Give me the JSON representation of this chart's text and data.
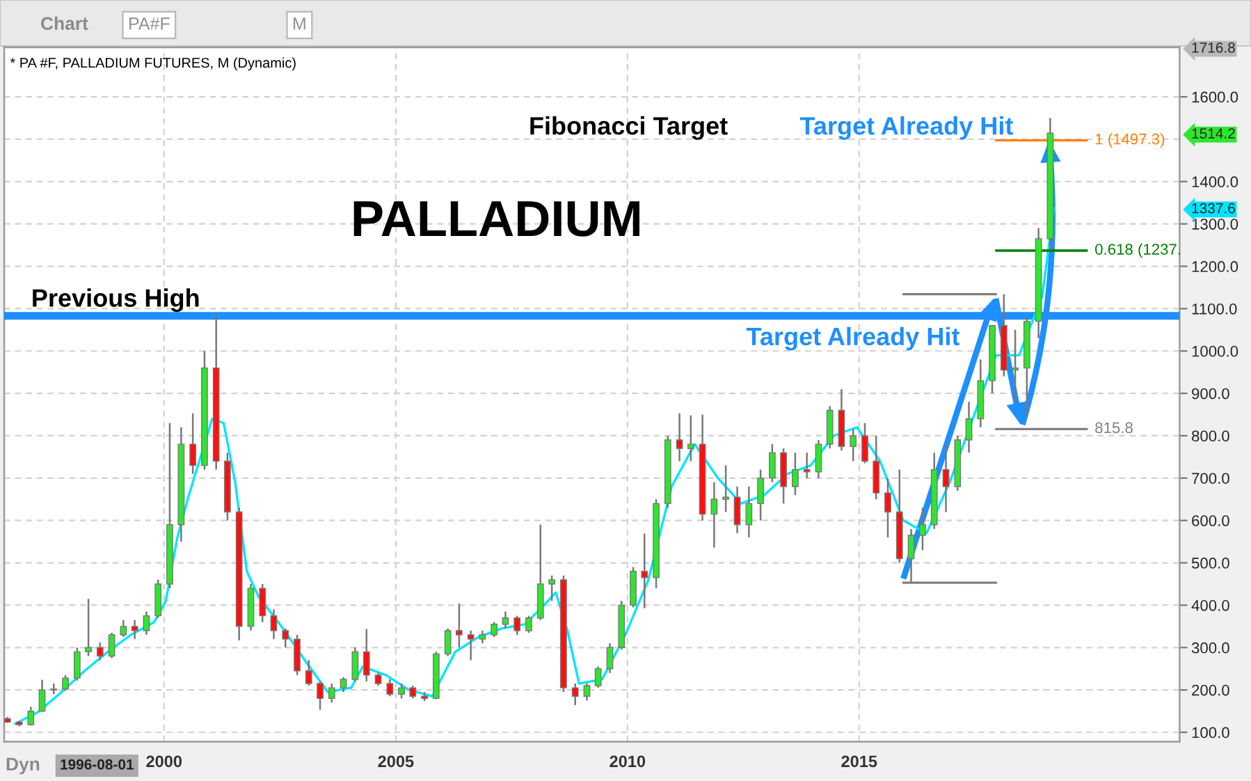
{
  "chart_data": {
    "type": "candlestick",
    "title": "* PA #F, PALLADIUM FUTURES, M (Dynamic)",
    "subtitle": "PALLADIUM",
    "x": [
      "1996-08-15",
      "1996-11-15",
      "1997-02-15",
      "1997-05-15",
      "1997-08-15",
      "1997-11-15",
      "1998-02-15",
      "1998-05-15",
      "1998-08-15",
      "1998-11-15",
      "1999-02-15",
      "1999-05-15",
      "1999-08-15",
      "1999-11-15",
      "2000-02-15",
      "2000-05-15",
      "2000-08-15",
      "2000-11-15",
      "2001-02-15",
      "2001-05-15",
      "2001-08-15",
      "2001-11-15",
      "2002-02-15",
      "2002-05-15",
      "2002-08-15",
      "2002-11-15",
      "2003-02-15",
      "2003-05-15",
      "2003-08-15",
      "2003-11-15",
      "2004-02-15",
      "2004-05-15",
      "2004-08-15",
      "2004-11-15",
      "2005-02-15",
      "2005-05-15",
      "2005-08-15",
      "2005-11-15",
      "2006-02-15",
      "2006-05-15",
      "2006-08-15",
      "2006-11-15",
      "2007-02-15",
      "2007-05-15",
      "2007-08-15",
      "2007-11-15",
      "2008-02-15",
      "2008-05-15",
      "2008-08-15",
      "2008-11-15",
      "2009-02-15",
      "2009-05-15",
      "2009-08-15",
      "2009-11-15",
      "2010-02-15",
      "2010-05-15",
      "2010-08-15",
      "2010-11-15",
      "2011-02-15",
      "2011-05-15",
      "2011-08-15",
      "2011-11-15",
      "2012-02-15",
      "2012-05-15",
      "2012-08-15",
      "2012-11-15",
      "2013-02-15",
      "2013-05-15",
      "2013-08-15",
      "2013-11-15",
      "2014-02-15",
      "2014-05-15",
      "2014-08-15",
      "2014-11-15",
      "2015-02-15",
      "2015-05-15",
      "2015-08-15",
      "2015-11-15",
      "2016-02-15",
      "2016-05-15",
      "2016-08-15",
      "2016-11-15",
      "2017-02-15",
      "2017-05-15",
      "2017-08-15",
      "2017-11-15",
      "2018-02-15",
      "2018-05-15",
      "2018-08-15",
      "2018-11-15",
      "2019-02-15"
    ],
    "ohlc": [
      [
        132,
        136,
        122,
        124
      ],
      [
        124,
        126,
        114,
        118
      ],
      [
        118,
        160,
        116,
        150
      ],
      [
        150,
        224,
        148,
        200
      ],
      [
        200,
        215,
        190,
        202
      ],
      [
        202,
        235,
        198,
        228
      ],
      [
        228,
        300,
        222,
        290
      ],
      [
        290,
        415,
        280,
        300
      ],
      [
        300,
        312,
        270,
        280
      ],
      [
        280,
        335,
        275,
        330
      ],
      [
        330,
        365,
        325,
        350
      ],
      [
        350,
        365,
        320,
        340
      ],
      [
        340,
        385,
        330,
        375
      ],
      [
        375,
        460,
        370,
        450
      ],
      [
        450,
        830,
        440,
        590
      ],
      [
        590,
        820,
        550,
        780
      ],
      [
        780,
        853,
        710,
        730
      ],
      [
        730,
        1000,
        720,
        960
      ],
      [
        960,
        1085,
        720,
        740
      ],
      [
        740,
        760,
        600,
        620
      ],
      [
        620,
        630,
        317,
        350
      ],
      [
        350,
        450,
        340,
        440
      ],
      [
        440,
        450,
        360,
        375
      ],
      [
        375,
        390,
        320,
        340
      ],
      [
        340,
        345,
        300,
        320
      ],
      [
        320,
        330,
        235,
        245
      ],
      [
        245,
        270,
        210,
        215
      ],
      [
        215,
        220,
        153,
        180
      ],
      [
        180,
        215,
        170,
        205
      ],
      [
        205,
        230,
        195,
        225
      ],
      [
        225,
        300,
        220,
        290
      ],
      [
        290,
        344,
        220,
        235
      ],
      [
        235,
        240,
        210,
        215
      ],
      [
        215,
        225,
        185,
        190
      ],
      [
        190,
        215,
        180,
        205
      ],
      [
        205,
        210,
        180,
        185
      ],
      [
        185,
        195,
        174,
        180
      ],
      [
        180,
        290,
        178,
        285
      ],
      [
        285,
        345,
        280,
        340
      ],
      [
        340,
        404,
        300,
        330
      ],
      [
        330,
        340,
        270,
        320
      ],
      [
        320,
        340,
        310,
        330
      ],
      [
        330,
        360,
        325,
        355
      ],
      [
        355,
        385,
        345,
        370
      ],
      [
        370,
        375,
        330,
        340
      ],
      [
        340,
        375,
        335,
        370
      ],
      [
        370,
        590,
        365,
        450
      ],
      [
        450,
        470,
        410,
        460
      ],
      [
        460,
        470,
        195,
        205
      ],
      [
        205,
        215,
        164,
        185
      ],
      [
        185,
        215,
        175,
        210
      ],
      [
        210,
        255,
        205,
        250
      ],
      [
        250,
        310,
        240,
        300
      ],
      [
        300,
        410,
        295,
        400
      ],
      [
        400,
        490,
        395,
        480
      ],
      [
        480,
        569,
        393,
        465
      ],
      [
        465,
        650,
        440,
        640
      ],
      [
        640,
        800,
        630,
        790
      ],
      [
        790,
        853,
        740,
        770
      ],
      [
        770,
        848,
        740,
        780
      ],
      [
        780,
        850,
        600,
        615
      ],
      [
        615,
        690,
        536,
        650
      ],
      [
        650,
        730,
        620,
        655
      ],
      [
        655,
        680,
        570,
        590
      ],
      [
        590,
        680,
        560,
        640
      ],
      [
        640,
        720,
        600,
        700
      ],
      [
        700,
        780,
        690,
        760
      ],
      [
        760,
        770,
        640,
        680
      ],
      [
        680,
        760,
        660,
        720
      ],
      [
        720,
        760,
        700,
        715
      ],
      [
        715,
        790,
        700,
        780
      ],
      [
        780,
        870,
        770,
        860
      ],
      [
        860,
        910,
        765,
        775
      ],
      [
        775,
        815,
        740,
        800
      ],
      [
        800,
        830,
        735,
        740
      ],
      [
        740,
        800,
        650,
        665
      ],
      [
        665,
        700,
        560,
        620
      ],
      [
        620,
        720,
        500,
        510
      ],
      [
        510,
        580,
        453,
        565
      ],
      [
        565,
        630,
        530,
        590
      ],
      [
        590,
        760,
        580,
        720
      ],
      [
        720,
        780,
        620,
        680
      ],
      [
        680,
        800,
        670,
        790
      ],
      [
        790,
        880,
        760,
        840
      ],
      [
        840,
        980,
        820,
        930
      ],
      [
        930,
        1060,
        900,
        1060
      ],
      [
        1060,
        1134,
        940,
        955
      ],
      [
        955,
        1050,
        880,
        960
      ],
      [
        960,
        1080,
        845,
        1070
      ],
      [
        1070,
        1290,
        1030,
        1265
      ],
      [
        1265,
        1550,
        1240,
        1514.2
      ]
    ],
    "colors": [
      "#ff1010",
      "#ff1010",
      "#2ee62e",
      "#2ee62e",
      "#2ee62e",
      "#2ee62e",
      "#2ee62e",
      "#2ee62e",
      "#ff1010",
      "#2ee62e",
      "#2ee62e",
      "#ff1010",
      "#2ee62e",
      "#2ee62e",
      "#2ee62e",
      "#2ee62e",
      "#ff1010",
      "#2ee62e",
      "#ff1010",
      "#ff1010",
      "#ff1010",
      "#2ee62e",
      "#ff1010",
      "#ff1010",
      "#ff1010",
      "#ff1010",
      "#ff1010",
      "#ff1010",
      "#2ee62e",
      "#2ee62e",
      "#2ee62e",
      "#ff1010",
      "#ff1010",
      "#ff1010",
      "#2ee62e",
      "#ff1010",
      "#ff1010",
      "#2ee62e",
      "#2ee62e",
      "#ff1010",
      "#ff1010",
      "#2ee62e",
      "#2ee62e",
      "#2ee62e",
      "#ff1010",
      "#2ee62e",
      "#2ee62e",
      "#2ee62e",
      "#ff1010",
      "#ff1010",
      "#2ee62e",
      "#2ee62e",
      "#2ee62e",
      "#2ee62e",
      "#2ee62e",
      "#ff1010",
      "#2ee62e",
      "#2ee62e",
      "#ff1010",
      "#2ee62e",
      "#ff1010",
      "#2ee62e",
      "#2ee62e",
      "#ff1010",
      "#2ee62e",
      "#2ee62e",
      "#2ee62e",
      "#ff1010",
      "#2ee62e",
      "#ff1010",
      "#2ee62e",
      "#2ee62e",
      "#ff1010",
      "#2ee62e",
      "#ff1010",
      "#ff1010",
      "#ff1010",
      "#ff1010",
      "#2ee62e",
      "#2ee62e",
      "#2ee62e",
      "#ff1010",
      "#2ee62e",
      "#2ee62e",
      "#2ee62e",
      "#2ee62e",
      "#ff1010",
      "#2ee62e",
      "#2ee62e",
      "#2ee62e",
      "#2ee62e"
    ],
    "series": [
      {
        "type": "line",
        "color": "#00e5ff",
        "x": [
          "1996-10-15",
          "1997-04-15",
          "1997-10-15",
          "1998-04-15",
          "1998-10-15",
          "1999-04-15",
          "1999-10-15",
          "2000-01-15",
          "2000-04-15",
          "2000-07-15",
          "2000-10-15",
          "2001-01-15",
          "2001-04-15",
          "2001-07-15",
          "2001-10-15",
          "2002-01-15",
          "2002-07-15",
          "2003-01-15",
          "2003-07-15",
          "2004-01-15",
          "2004-04-15",
          "2004-10-15",
          "2005-04-15",
          "2005-10-15",
          "2006-04-15",
          "2006-10-15",
          "2007-04-15",
          "2007-10-15",
          "2008-03-15",
          "2008-06-15",
          "2008-09-15",
          "2008-12-15",
          "2009-06-15",
          "2009-12-15",
          "2010-06-15",
          "2010-12-15",
          "2011-06-15",
          "2011-12-15",
          "2012-06-15",
          "2012-12-15",
          "2013-06-15",
          "2013-12-15",
          "2014-06-15",
          "2014-12-15",
          "2015-06-15",
          "2015-12-15",
          "2016-06-15",
          "2016-12-15",
          "2017-06-15",
          "2017-12-15",
          "2018-06-15",
          "2018-12-15",
          "2019-03-15"
        ],
        "values": [
          120,
          148,
          195,
          245,
          290,
          330,
          360,
          410,
          560,
          660,
          750,
          840,
          830,
          690,
          480,
          420,
          350,
          270,
          195,
          205,
          255,
          235,
          200,
          185,
          290,
          325,
          345,
          355,
          400,
          430,
          340,
          215,
          225,
          330,
          460,
          680,
          780,
          700,
          640,
          660,
          710,
          730,
          800,
          820,
          740,
          600,
          570,
          690,
          840,
          990,
          990,
          1130,
          1337.6
        ]
      },
      {
        "type": "line",
        "color": "#808080",
        "x": [
          "2015-12-15",
          "2017-12-15"
        ],
        "values": [
          453,
          453
        ]
      },
      {
        "type": "line",
        "color": "#808080",
        "x": [
          "2015-12-15",
          "2017-12-15"
        ],
        "values": [
          1134,
          1134
        ]
      },
      {
        "type": "line",
        "name": "815.8",
        "color": "#808080",
        "x": [
          "2017-12-15",
          "2019-12-01"
        ],
        "values": [
          815.8,
          815.8
        ]
      },
      {
        "type": "line",
        "name": "0.618 (1237.",
        "color": "#008000",
        "x": [
          "2017-12-15",
          "2019-12-01"
        ],
        "values": [
          1237,
          1237
        ]
      },
      {
        "type": "line",
        "name": "1 (1497.3)",
        "color": "#ff8000",
        "x": [
          "2017-12-15",
          "2019-12-01"
        ],
        "values": [
          1497.3,
          1497.3
        ]
      }
    ],
    "ref_lines": [
      {
        "axis": "y",
        "value": 1083,
        "label": "Previous High",
        "color": "#1e8fff"
      }
    ],
    "annotations": [
      "Fibonacci Target",
      "Target Already Hit",
      {
        "text": "Target Already Hit",
        "x": "2017-12-15",
        "y": 1134
      },
      "Chart",
      "PA#F",
      "M",
      "Dyn",
      "1996-08-01"
    ],
    "xlim": [
      "1996-07-20",
      "2021-12-01"
    ],
    "xticks": [
      {
        "value": "2000-01-01",
        "label": "2000"
      },
      {
        "value": "2005-01-01",
        "label": "2005"
      },
      {
        "value": "2010-01-01",
        "label": "2010"
      },
      {
        "value": "2015-01-01",
        "label": "2015"
      }
    ],
    "ylim": [
      78,
      1716.8
    ],
    "yticks": [
      {
        "value": 100,
        "label": "100.0"
      },
      {
        "value": 200,
        "label": "200.0"
      },
      {
        "value": 300,
        "label": "300.0"
      },
      {
        "value": 400,
        "label": "400.0"
      },
      {
        "value": 500,
        "label": "500.0"
      },
      {
        "value": 600,
        "label": "600.0"
      },
      {
        "value": 700,
        "label": "700.0"
      },
      {
        "value": 800,
        "label": "800.0"
      },
      {
        "value": 900,
        "label": "900.0"
      },
      {
        "value": 1000,
        "label": "1000.0"
      },
      {
        "value": 1100,
        "label": "1100.0"
      },
      {
        "value": 1200,
        "label": "1200.0"
      },
      {
        "value": 1300,
        "label": "1300.0"
      },
      {
        "value": 1400,
        "label": "1400.0"
      },
      {
        "value": 1500,
        "label": null
      },
      {
        "value": 1600,
        "label": "1600.0"
      },
      {
        "value": 1337.6,
        "label": "1337.6"
      },
      {
        "value": 1514.2,
        "label": "1514.2"
      },
      {
        "value": 1716.8,
        "label": "1716.8"
      }
    ],
    "grid": true
  }
}
